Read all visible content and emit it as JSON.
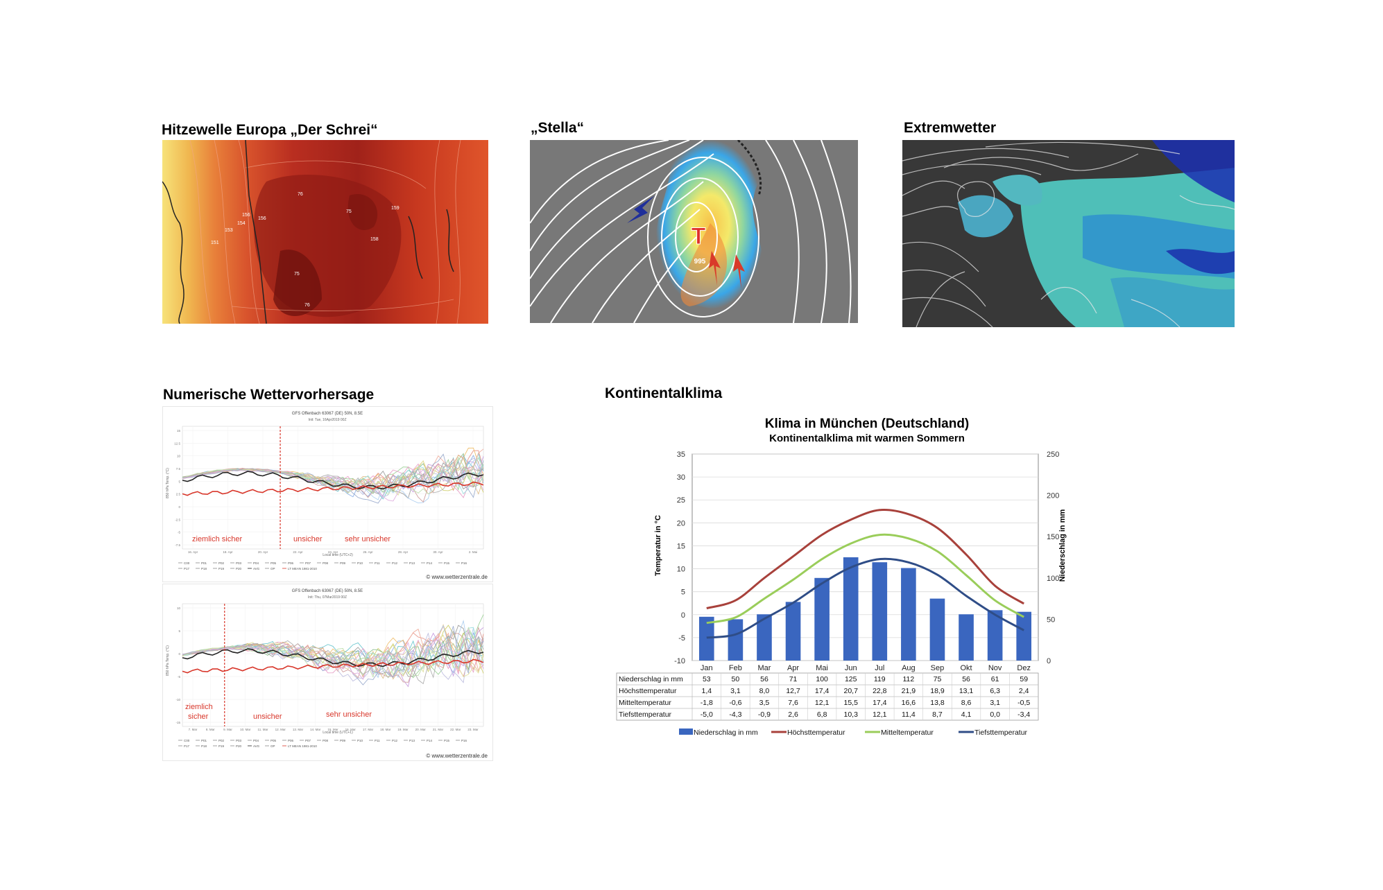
{
  "panels": {
    "heatwave": {
      "title": "Hitzewelle Europa „Der Schrei“",
      "map_labels": [
        "156",
        "156",
        "154",
        "153",
        "151",
        "159",
        "158",
        "76",
        "75",
        "75",
        "76"
      ]
    },
    "stella": {
      "title": "„Stella“",
      "low_symbol": "T",
      "pressure": "995"
    },
    "extreme": {
      "title": "Extremwetter"
    },
    "nwp": {
      "title": "Numerische Wettervorhersage",
      "chart1": {
        "header": "GFS Offenbach 63067 (DE) 50N, 8.5E",
        "subheader": "Init: Tue, 16Apr2019 00Z",
        "ylabel": "850 hPa Temp. (°C)",
        "xlabel": "Local time (UTC+2)",
        "yticks": [
          "15",
          "12.5",
          "10",
          "7.5",
          "5",
          "2.5",
          "0",
          "-2.5",
          "-5",
          "-7.5"
        ],
        "xticks": [
          "16. Apr",
          "18. Apr",
          "20. Apr",
          "22. Apr",
          "24. Apr",
          "26. Apr",
          "28. Apr",
          "30. Apr",
          "2. Mai"
        ],
        "phases": [
          "ziemlich sicher",
          "unsicher",
          "sehr unsicher"
        ],
        "legend_row1": [
          "C00",
          "P01",
          "P02",
          "P03",
          "P04",
          "P05",
          "P06",
          "P07",
          "P08",
          "P09",
          "P10",
          "P11",
          "P12",
          "P13",
          "P14",
          "P15",
          "P16"
        ],
        "legend_row2": [
          "P17",
          "P18",
          "P19",
          "P20",
          "AVG",
          "OP",
          "LT MEAN 1981-2010"
        ],
        "source": "© www.wetterzentrale.de"
      },
      "chart2": {
        "header": "GFS Offenbach 63067 (DE) 50N, 8.5E",
        "subheader": "Init: Thu, 07Mar2019 00Z",
        "ylabel": "850 hPa Temp. (°C)",
        "xlabel": "Local time (UTC+1)",
        "yticks": [
          "10",
          "5",
          "0",
          "-5",
          "-10",
          "-15"
        ],
        "xticks": [
          "7. Mar",
          "8. Mar",
          "9. Mar",
          "10. Mar",
          "11. Mar",
          "12. Mar",
          "13. Mar",
          "14. Mar",
          "15. Mar",
          "16. Mar",
          "17. Mar",
          "18. Mar",
          "19. Mar",
          "20. Mar",
          "21. Mar",
          "22. Mar",
          "23. Mar"
        ],
        "phase1_line1": "ziemlich",
        "phase1_line2": "sicher",
        "phases": [
          "unsicher",
          "sehr unsicher"
        ],
        "legend_row1": [
          "C00",
          "P01",
          "P02",
          "P03",
          "P04",
          "P05",
          "P06",
          "P07",
          "P08",
          "P09",
          "P10",
          "P11",
          "P12",
          "P13",
          "P14",
          "P15",
          "P16"
        ],
        "legend_row2": [
          "P17",
          "P18",
          "P19",
          "P20",
          "AVG",
          "OP",
          "LT MEAN 1981-2010"
        ],
        "source": "© www.wetterzentrale.de"
      }
    },
    "klima": {
      "title": "Kontinentalklima"
    }
  },
  "chart_data": [
    {
      "type": "bar",
      "title": "Klima in München (Deutschland)",
      "subtitle": "Kontinentalklima mit warmen Sommern",
      "ylabel": "Temperatur in °C",
      "y2label": "Niederschlag in mm",
      "ylim": [
        -10,
        35
      ],
      "y2lim": [
        0,
        250
      ],
      "yticks": [
        "35",
        "30",
        "25",
        "20",
        "15",
        "10",
        "5",
        "0",
        "-5",
        "-10"
      ],
      "y2ticks": [
        "250",
        "200",
        "150",
        "100",
        "50",
        "0"
      ],
      "categories": [
        "Jan",
        "Feb",
        "Mar",
        "Apr",
        "Mai",
        "Jun",
        "Jul",
        "Aug",
        "Sep",
        "Okt",
        "Nov",
        "Dez"
      ],
      "series": [
        {
          "name": "Niederschlag in mm",
          "type": "bar",
          "axis": "right",
          "color": "#3a66bf",
          "values": [
            53,
            50,
            56,
            71,
            100,
            125,
            119,
            112,
            75,
            56,
            61,
            59
          ],
          "labels": [
            "53",
            "50",
            "56",
            "71",
            "100",
            "125",
            "119",
            "112",
            "75",
            "56",
            "61",
            "59"
          ]
        },
        {
          "name": "Höchsttemperatur",
          "type": "line",
          "axis": "left",
          "color": "#a8413b",
          "values": [
            1.4,
            3.1,
            8.0,
            12.7,
            17.4,
            20.7,
            22.8,
            21.9,
            18.9,
            13.1,
            6.3,
            2.4
          ],
          "labels": [
            "1,4",
            "3,1",
            "8,0",
            "12,7",
            "17,4",
            "20,7",
            "22,8",
            "21,9",
            "18,9",
            "13,1",
            "6,3",
            "2,4"
          ]
        },
        {
          "name": "Mitteltemperatur",
          "type": "line",
          "axis": "left",
          "color": "#9acd5a",
          "values": [
            -1.8,
            -0.6,
            3.5,
            7.6,
            12.1,
            15.5,
            17.4,
            16.6,
            13.8,
            8.6,
            3.1,
            -0.5
          ],
          "labels": [
            "-1,8",
            "-0,6",
            "3,5",
            "7,6",
            "12,1",
            "15,5",
            "17,4",
            "16,6",
            "13,8",
            "8,6",
            "3,1",
            "-0,5"
          ]
        },
        {
          "name": "Tiefsttemperatur",
          "type": "line",
          "axis": "left",
          "color": "#2f4d87",
          "values": [
            -5.0,
            -4.3,
            -0.9,
            2.6,
            6.8,
            10.3,
            12.1,
            11.4,
            8.7,
            4.1,
            0.0,
            -3.4
          ],
          "labels": [
            "-5,0",
            "-4,3",
            "-0,9",
            "2,6",
            "6,8",
            "10,3",
            "12,1",
            "11,4",
            "8,7",
            "4,1",
            "0,0",
            "-3,4"
          ]
        }
      ],
      "grid": true,
      "legend": "bottom"
    }
  ]
}
